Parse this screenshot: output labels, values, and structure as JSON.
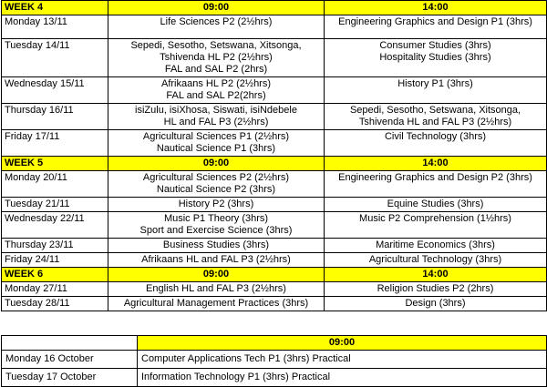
{
  "schedule": {
    "weeks": [
      {
        "label": "WEEK 4",
        "am": "09:00",
        "pm": "14:00",
        "rows": [
          {
            "day": "Monday 13/11",
            "am": [
              "Life Sciences P2 (2½hrs)"
            ],
            "pm": [
              "Engineering Graphics and Design P1 (3hrs)"
            ]
          },
          {
            "day": "Tuesday 14/11",
            "am": [
              "Sepedi, Sesotho, Setswana, Xitsonga,",
              "Tshivenda HL P2 (2½hrs)",
              "FAL and SAL P2 (2hrs)"
            ],
            "pm": [
              "Consumer Studies (3hrs)",
              "Hospitality Studies (3hrs)"
            ]
          },
          {
            "day": "Wednesday 15/11",
            "am": [
              "Afrikaans HL P2 (2½hrs)",
              "FAL and SAL P2(2hrs)"
            ],
            "pm": [
              "History P1 (3hrs)"
            ]
          },
          {
            "day": "Thursday 16/11",
            "am": [
              "isiZulu, isiXhosa, Siswati, isiNdebele",
              "HL and FAL P3 (2½hrs)"
            ],
            "pm": [
              "Sepedi, Sesotho, Setswana, Xitsonga,",
              "Tshivenda HL and FAL P3 (2½hrs)"
            ]
          },
          {
            "day": "Friday 17/11",
            "am": [
              "Agricultural Sciences P1 (2½hrs)",
              "Nautical Science P1 (3hrs)"
            ],
            "pm": [
              "Civil Technology (3hrs)"
            ]
          }
        ]
      },
      {
        "label": "WEEK 5",
        "am": "09:00",
        "pm": "14:00",
        "rows": [
          {
            "day": "Monday 20/11",
            "am": [
              "Agricultural Sciences P2 (2½hrs)",
              "Nautical Science P2 (3hrs)"
            ],
            "pm": [
              "Engineering Graphics and Design P2 (3hrs)"
            ]
          },
          {
            "day": "Tuesday 21/11",
            "am": [
              "History P2 (3hrs)"
            ],
            "pm": [
              "Equine Studies (3hrs)"
            ]
          },
          {
            "day": "Wednesday 22/11",
            "am": [
              "Music P1 Theory (3hrs)",
              "Sport and Exercise Science (3hrs)"
            ],
            "pm": [
              "Music P2 Comprehension (1½hrs)"
            ]
          },
          {
            "day": "Thursday 23/11",
            "am": [
              "Business Studies (3hrs)"
            ],
            "pm": [
              "Maritime Economics (3hrs)"
            ]
          },
          {
            "day": "Friday 24/11",
            "am": [
              "Afrikaans HL and FAL P3 (2½hrs)"
            ],
            "pm": [
              "Agricultural Technology (3hrs)"
            ]
          }
        ]
      },
      {
        "label": "WEEK 6",
        "am": "09:00",
        "pm": "14:00",
        "rows": [
          {
            "day": "Monday 27/11",
            "am": [
              "English HL and FAL P3 (2½hrs)"
            ],
            "pm": [
              "Religion Studies P2 (2hrs)"
            ]
          },
          {
            "day": "Tuesday 28/11",
            "am": [
              "Agricultural Management Practices (3hrs)"
            ],
            "pm": [
              "Design (3hrs)"
            ]
          }
        ]
      }
    ]
  },
  "practicals": {
    "header": "09:00",
    "rows": [
      {
        "day": "Monday 16 October",
        "exam": "Computer Applications Tech P1 (3hrs) Practical"
      },
      {
        "day": "Tuesday 17 October",
        "exam": "Information Technology P1 (3hrs) Practical"
      }
    ]
  }
}
